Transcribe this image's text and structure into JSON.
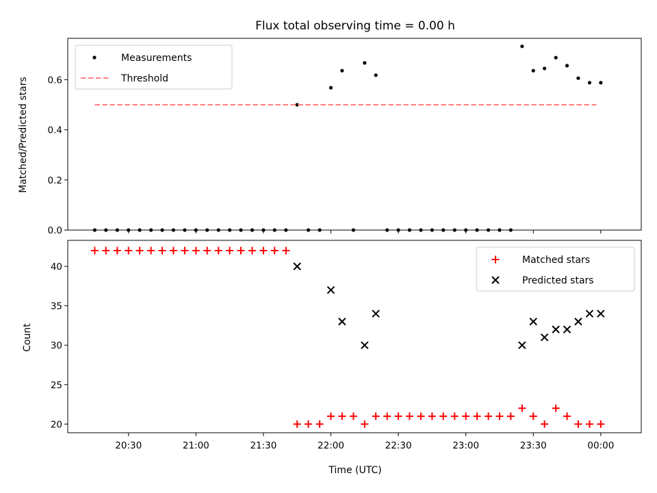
{
  "figure": {
    "title": "Flux total observing time = 0.00 h",
    "xlabel": "Time (UTC)"
  },
  "chart_data": [
    {
      "type": "scatter",
      "name": "ratio-panel",
      "ylabel": "Matched/Predicted stars",
      "xlim": [
        20.05,
        24.3
      ],
      "ylim": [
        0.0,
        0.765
      ],
      "yticks": [
        0.0,
        0.2,
        0.4,
        0.6
      ],
      "ytick_labels": [
        "0.0",
        "0.2",
        "0.4",
        "0.6"
      ],
      "xticks": [
        20.5,
        21.0,
        21.5,
        22.0,
        22.5,
        23.0,
        23.5,
        24.0
      ],
      "xtick_labels": [
        "",
        "",
        "",
        "",
        "",
        "",
        "",
        ""
      ],
      "legend": "upper-left",
      "series": [
        {
          "name": "Measurements",
          "marker": "dot",
          "color": "#000000",
          "x": [
            20.25,
            20.333,
            20.417,
            20.5,
            20.583,
            20.667,
            20.75,
            20.833,
            20.917,
            21.0,
            21.083,
            21.167,
            21.25,
            21.333,
            21.417,
            21.5,
            21.583,
            21.667,
            21.75,
            21.833,
            21.917,
            22.0,
            22.083,
            22.167,
            22.25,
            22.333,
            22.417,
            22.5,
            22.583,
            22.667,
            22.75,
            22.833,
            22.917,
            23.0,
            23.083,
            23.167,
            23.25,
            23.333,
            23.417,
            23.5,
            23.583,
            23.667,
            23.75,
            23.833,
            23.917,
            24.0
          ],
          "y": [
            0,
            0,
            0,
            0,
            0,
            0,
            0,
            0,
            0,
            0,
            0,
            0,
            0,
            0,
            0,
            0,
            0,
            0,
            0.5,
            0,
            0,
            0.568,
            0.636,
            0,
            0.667,
            0.618,
            0,
            0,
            0,
            0,
            0,
            0,
            0,
            0,
            0,
            0,
            0,
            0,
            0.733,
            0.636,
            0.645,
            0.688,
            0.656,
            0.606,
            0.588,
            0.588
          ]
        },
        {
          "name": "Threshold",
          "marker": "dashed-line",
          "color": "#ff7f7f",
          "x": [
            20.25,
            23.967
          ],
          "y": [
            0.5,
            0.5
          ]
        }
      ]
    },
    {
      "type": "scatter",
      "name": "count-panel",
      "ylabel": "Count",
      "xlim": [
        20.05,
        24.3
      ],
      "ylim": [
        18.9,
        43.3
      ],
      "yticks": [
        20,
        25,
        30,
        35,
        40
      ],
      "ytick_labels": [
        "20",
        "25",
        "30",
        "35",
        "40"
      ],
      "xticks": [
        20.5,
        21.0,
        21.5,
        22.0,
        22.5,
        23.0,
        23.5,
        24.0
      ],
      "xtick_labels": [
        "20:30",
        "21:00",
        "21:30",
        "22:00",
        "22:30",
        "23:00",
        "23:30",
        "00:00"
      ],
      "legend": "upper-right",
      "series": [
        {
          "name": "Matched stars",
          "marker": "plus",
          "color": "#ff0000",
          "x": [
            20.25,
            20.333,
            20.417,
            20.5,
            20.583,
            20.667,
            20.75,
            20.833,
            20.917,
            21.0,
            21.083,
            21.167,
            21.25,
            21.333,
            21.417,
            21.5,
            21.583,
            21.667,
            21.75,
            21.833,
            21.917,
            22.0,
            22.083,
            22.167,
            22.25,
            22.333,
            22.417,
            22.5,
            22.583,
            22.667,
            22.75,
            22.833,
            22.917,
            23.0,
            23.083,
            23.167,
            23.25,
            23.333,
            23.417,
            23.5,
            23.583,
            23.667,
            23.75,
            23.833,
            23.917,
            24.0
          ],
          "y": [
            42,
            42,
            42,
            42,
            42,
            42,
            42,
            42,
            42,
            42,
            42,
            42,
            42,
            42,
            42,
            42,
            42,
            42,
            20,
            20,
            20,
            21,
            21,
            21,
            20,
            21,
            21,
            21,
            21,
            21,
            21,
            21,
            21,
            21,
            21,
            21,
            21,
            21,
            22,
            21,
            20,
            22,
            21,
            20,
            20,
            20
          ]
        },
        {
          "name": "Predicted stars",
          "marker": "x",
          "color": "#000000",
          "x": [
            21.75,
            22.0,
            22.083,
            22.25,
            22.333,
            23.417,
            23.5,
            23.583,
            23.667,
            23.75,
            23.833,
            23.917,
            24.0
          ],
          "y": [
            40,
            37,
            33,
            30,
            34,
            30,
            33,
            31,
            32,
            32,
            33,
            34,
            34
          ]
        }
      ]
    }
  ]
}
